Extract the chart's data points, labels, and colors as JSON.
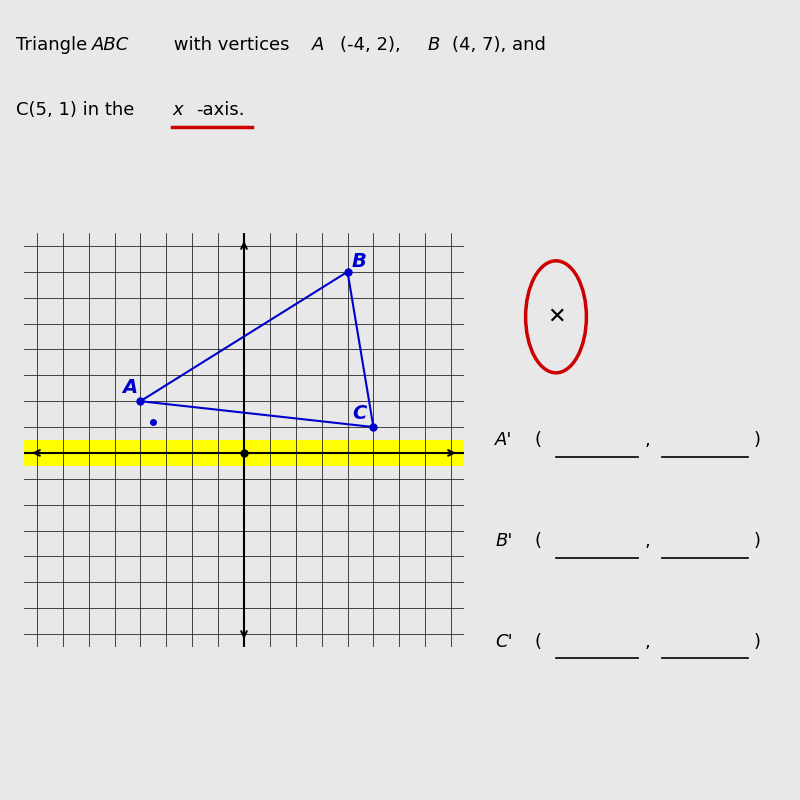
{
  "title_line1": "Triangle ",
  "title_ABC": "ABC",
  "title_line1b": " with vertices ",
  "title_A": "A",
  "title_coords1": "(-4, 2), ",
  "title_B": "B",
  "title_coords2": "(4, 7), and",
  "title_line2": "C(5, 1) in the ",
  "title_xaxis": "x",
  "title_line2b": "-axis.",
  "vertices": {
    "A": [
      -4,
      2
    ],
    "B": [
      4,
      7
    ],
    "C": [
      5,
      1
    ]
  },
  "grid_xlim": [
    -8,
    8
  ],
  "grid_ylim": [
    -7,
    8
  ],
  "x_axis_highlight_y": 0,
  "highlight_color": "#FFFF00",
  "underline_color": "#CC0000",
  "triangle_color": "#0000CC",
  "dot_color": "#0000CC",
  "label_color": "#0000CC",
  "origin_dot_color": "#000000",
  "x_circle_color": "#CC0000",
  "answer_label_color": "#000000",
  "bg_color": "#f0f0f0",
  "plot_bg": "#ffffff"
}
